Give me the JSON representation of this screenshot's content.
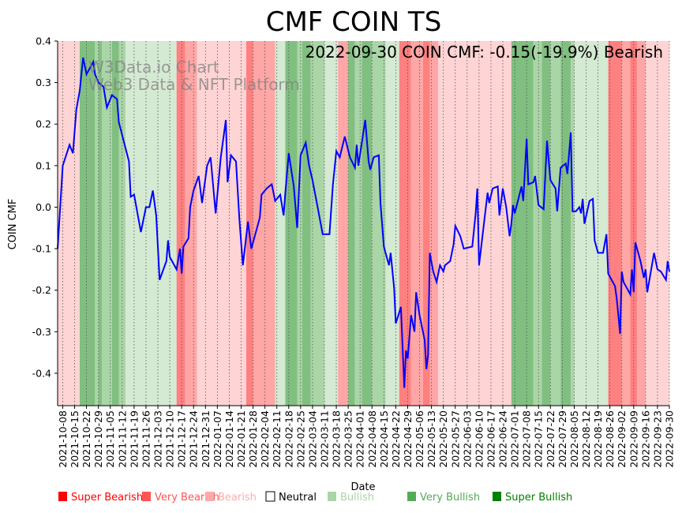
{
  "chart_data": {
    "type": "line",
    "title": "CMF COIN TS",
    "annotation": "2022-09-30 COIN CMF: -0.15(-19.9%) Bearish",
    "watermark": [
      "W3Data.io Chart",
      "Web3 Data & NFT Platform"
    ],
    "xlabel": "Date",
    "ylabel": "COIN CMF",
    "ylim": [
      -0.478,
      0.4
    ],
    "x_origin": "2021-10-08",
    "xlim_days": [
      -3,
      357
    ],
    "yticks": [
      "-0.4",
      "-0.3",
      "-0.2",
      "-0.1",
      "0.0",
      "0.1",
      "0.2",
      "0.3",
      "0.4"
    ],
    "ytick_values": [
      -0.4,
      -0.3,
      -0.2,
      -0.1,
      0.0,
      0.1,
      0.2,
      0.3,
      0.4
    ],
    "xticks": [
      "2021-10-08",
      "2021-10-15",
      "2021-10-22",
      "2021-10-29",
      "2021-11-05",
      "2021-11-12",
      "2021-11-19",
      "2021-11-26",
      "2021-12-03",
      "2021-12-10",
      "2021-12-17",
      "2021-12-24",
      "2021-12-31",
      "2022-01-07",
      "2022-01-14",
      "2022-01-21",
      "2022-01-28",
      "2022-02-04",
      "2022-02-11",
      "2022-02-18",
      "2022-02-25",
      "2022-03-04",
      "2022-03-11",
      "2022-03-18",
      "2022-03-25",
      "2022-04-01",
      "2022-04-08",
      "2022-04-15",
      "2022-04-22",
      "2022-04-29",
      "2022-05-06",
      "2022-05-13",
      "2022-05-20",
      "2022-05-27",
      "2022-06-03",
      "2022-06-10",
      "2022-06-17",
      "2022-06-24",
      "2022-07-01",
      "2022-07-08",
      "2022-07-15",
      "2022-07-22",
      "2022-07-29",
      "2022-08-05",
      "2022-08-12",
      "2022-08-19",
      "2022-08-26",
      "2022-09-02",
      "2022-09-09",
      "2022-09-16",
      "2022-09-23",
      "2022-09-30"
    ],
    "series": [
      {
        "name": "COIN CMF",
        "color": "#0000ff",
        "points_day_value": [
          [
            -3,
            -0.1
          ],
          [
            0,
            0.1
          ],
          [
            4,
            0.15
          ],
          [
            6,
            0.13
          ],
          [
            8,
            0.235
          ],
          [
            10,
            0.28
          ],
          [
            12,
            0.36
          ],
          [
            14,
            0.32
          ],
          [
            18,
            0.35
          ],
          [
            19,
            0.32
          ],
          [
            21,
            0.3
          ],
          [
            24,
            0.29
          ],
          [
            26,
            0.24
          ],
          [
            29,
            0.27
          ],
          [
            32,
            0.26
          ],
          [
            33,
            0.205
          ],
          [
            39,
            0.11
          ],
          [
            40,
            0.025
          ],
          [
            42,
            0.03
          ],
          [
            46,
            -0.06
          ],
          [
            49,
            0
          ],
          [
            51,
            0
          ],
          [
            53,
            0.04
          ],
          [
            55,
            -0.02
          ],
          [
            57,
            -0.175
          ],
          [
            61,
            -0.13
          ],
          [
            62,
            -0.08
          ],
          [
            63,
            -0.12
          ],
          [
            67,
            -0.15
          ],
          [
            69,
            -0.1
          ],
          [
            70,
            -0.16
          ],
          [
            71,
            -0.095
          ],
          [
            74,
            -0.075
          ],
          [
            75,
            0
          ],
          [
            77,
            0.04
          ],
          [
            80,
            0.075
          ],
          [
            82,
            0.01
          ],
          [
            85,
            0.1
          ],
          [
            87,
            0.12
          ],
          [
            90,
            -0.015
          ],
          [
            93,
            0.12
          ],
          [
            96,
            0.21
          ],
          [
            97,
            0.06
          ],
          [
            99,
            0.125
          ],
          [
            102,
            0.11
          ],
          [
            104,
            -0.03
          ],
          [
            106,
            -0.14
          ],
          [
            109,
            -0.035
          ],
          [
            111,
            -0.1
          ],
          [
            116,
            -0.025
          ],
          [
            117,
            0.03
          ],
          [
            120,
            0.045
          ],
          [
            123,
            0.055
          ],
          [
            125,
            0.015
          ],
          [
            128,
            0.03
          ],
          [
            130,
            -0.02
          ],
          [
            131,
            0.035
          ],
          [
            133,
            0.13
          ],
          [
            136,
            0.05
          ],
          [
            138,
            -0.05
          ],
          [
            140,
            0.125
          ],
          [
            143,
            0.155
          ],
          [
            145,
            0.1
          ],
          [
            147,
            0.065
          ],
          [
            150,
            0
          ],
          [
            153,
            -0.065
          ],
          [
            157,
            -0.065
          ],
          [
            159,
            0.055
          ],
          [
            161,
            0.135
          ],
          [
            163,
            0.12
          ],
          [
            166,
            0.17
          ],
          [
            169,
            0.12
          ],
          [
            172,
            0.095
          ],
          [
            173,
            0.15
          ],
          [
            174,
            0.1
          ],
          [
            178,
            0.21
          ],
          [
            180,
            0.11
          ],
          [
            181,
            0.09
          ],
          [
            183,
            0.12
          ],
          [
            186,
            0.125
          ],
          [
            187,
            0.01
          ],
          [
            189,
            -0.095
          ],
          [
            192,
            -0.14
          ],
          [
            193,
            -0.11
          ],
          [
            195,
            -0.195
          ],
          [
            196,
            -0.28
          ],
          [
            199,
            -0.24
          ],
          [
            201,
            -0.435
          ],
          [
            202,
            -0.345
          ],
          [
            203,
            -0.365
          ],
          [
            205,
            -0.26
          ],
          [
            207,
            -0.3
          ],
          [
            208,
            -0.205
          ],
          [
            210,
            -0.26
          ],
          [
            213,
            -0.32
          ],
          [
            214,
            -0.39
          ],
          [
            215,
            -0.355
          ],
          [
            216,
            -0.11
          ],
          [
            218,
            -0.155
          ],
          [
            220,
            -0.18
          ],
          [
            222,
            -0.14
          ],
          [
            224,
            -0.155
          ],
          [
            225,
            -0.14
          ],
          [
            228,
            -0.13
          ],
          [
            230,
            -0.09
          ],
          [
            231,
            -0.045
          ],
          [
            234,
            -0.07
          ],
          [
            236,
            -0.1
          ],
          [
            241,
            -0.095
          ],
          [
            243,
            -0.015
          ],
          [
            244,
            0.045
          ],
          [
            245,
            -0.14
          ],
          [
            250,
            0.035
          ],
          [
            251,
            0.01
          ],
          [
            253,
            0.045
          ],
          [
            256,
            0.05
          ],
          [
            257,
            -0.02
          ],
          [
            259,
            0.045
          ],
          [
            261,
            0
          ],
          [
            263,
            -0.07
          ],
          [
            264,
            -0.04
          ],
          [
            265,
            0.005
          ],
          [
            266,
            -0.015
          ],
          [
            270,
            0.05
          ],
          [
            271,
            0.015
          ],
          [
            273,
            0.165
          ],
          [
            274,
            0.055
          ],
          [
            277,
            0.06
          ],
          [
            278,
            0.075
          ],
          [
            280,
            0.005
          ],
          [
            283,
            -0.005
          ],
          [
            285,
            0.16
          ],
          [
            287,
            0.065
          ],
          [
            290,
            0.045
          ],
          [
            291,
            -0.01
          ],
          [
            293,
            0.095
          ],
          [
            296,
            0.105
          ],
          [
            297,
            0.08
          ],
          [
            299,
            0.18
          ],
          [
            300,
            -0.01
          ],
          [
            302,
            -0.01
          ],
          [
            304,
            0
          ],
          [
            305,
            -0.015
          ],
          [
            306,
            0.02
          ],
          [
            307,
            -0.04
          ],
          [
            310,
            0.015
          ],
          [
            312,
            0.02
          ],
          [
            313,
            -0.08
          ],
          [
            315,
            -0.11
          ],
          [
            318,
            -0.11
          ],
          [
            320,
            -0.065
          ],
          [
            321,
            -0.16
          ],
          [
            325,
            -0.19
          ],
          [
            326,
            -0.22
          ],
          [
            328,
            -0.305
          ],
          [
            329,
            -0.155
          ],
          [
            330,
            -0.18
          ],
          [
            334,
            -0.21
          ],
          [
            335,
            -0.15
          ],
          [
            336,
            -0.205
          ],
          [
            337,
            -0.085
          ],
          [
            340,
            -0.13
          ],
          [
            342,
            -0.17
          ],
          [
            343,
            -0.15
          ],
          [
            344,
            -0.205
          ],
          [
            348,
            -0.11
          ],
          [
            350,
            -0.15
          ],
          [
            352,
            -0.155
          ],
          [
            355,
            -0.175
          ],
          [
            356,
            -0.13
          ],
          [
            357,
            -0.155
          ]
        ]
      }
    ],
    "bands_day_level": [
      [
        -3,
        10,
        "bearish"
      ],
      [
        10,
        19,
        "super_bullish"
      ],
      [
        19,
        21,
        "very_bullish"
      ],
      [
        21,
        23,
        "super_bullish"
      ],
      [
        23,
        29,
        "very_bullish"
      ],
      [
        29,
        33,
        "super_bullish"
      ],
      [
        33,
        37,
        "very_bullish"
      ],
      [
        37,
        67,
        "bullish"
      ],
      [
        67,
        72,
        "super_bearish"
      ],
      [
        72,
        79,
        "very_bearish"
      ],
      [
        79,
        108,
        "bearish"
      ],
      [
        108,
        112,
        "super_bearish"
      ],
      [
        112,
        125,
        "very_bearish"
      ],
      [
        125,
        131,
        "bullish"
      ],
      [
        131,
        138,
        "super_bullish"
      ],
      [
        138,
        141,
        "very_bullish"
      ],
      [
        141,
        146,
        "super_bullish"
      ],
      [
        146,
        154,
        "very_bullish"
      ],
      [
        154,
        162,
        "bullish"
      ],
      [
        162,
        168,
        "very_bearish"
      ],
      [
        168,
        172,
        "super_bullish"
      ],
      [
        172,
        176,
        "very_bullish"
      ],
      [
        176,
        182,
        "super_bullish"
      ],
      [
        182,
        190,
        "very_bullish"
      ],
      [
        190,
        198,
        "bullish"
      ],
      [
        198,
        205,
        "super_bearish"
      ],
      [
        205,
        212,
        "very_bearish"
      ],
      [
        212,
        216,
        "super_bearish"
      ],
      [
        216,
        221,
        "very_bearish"
      ],
      [
        221,
        264,
        "bearish"
      ],
      [
        264,
        277,
        "super_bullish"
      ],
      [
        277,
        282,
        "very_bullish"
      ],
      [
        282,
        287,
        "super_bullish"
      ],
      [
        287,
        293,
        "very_bullish"
      ],
      [
        293,
        299,
        "super_bullish"
      ],
      [
        299,
        301,
        "very_bullish"
      ],
      [
        301,
        321,
        "bullish"
      ],
      [
        321,
        329,
        "super_bearish"
      ],
      [
        329,
        334,
        "very_bearish"
      ],
      [
        334,
        338,
        "super_bearish"
      ],
      [
        338,
        343,
        "very_bearish"
      ],
      [
        343,
        357,
        "bearish"
      ]
    ],
    "band_colors": {
      "super_bearish": "#ff8080",
      "very_bearish": "#ffa6a6",
      "bearish": "#ffd4d4",
      "bullish": "#d5ead3",
      "very_bullish": "#aad5a6",
      "super_bullish": "#80bf80"
    },
    "legend": [
      {
        "label": "Super Bearish",
        "color": "#ff0000",
        "text_color": "#ff0000"
      },
      {
        "label": "Very Bearish",
        "color": "#ff5555",
        "text_color": "#ff5555"
      },
      {
        "label": "Bearish",
        "color": "#ffaaaa",
        "text_color": "#ffaaaa"
      },
      {
        "label": "Neutral",
        "color": "none",
        "text_color": "#000000"
      },
      {
        "label": "Bullish",
        "color": "#aad5a6",
        "text_color": "#aad5a6"
      },
      {
        "label": "Very Bullish",
        "color": "#55aa55",
        "text_color": "#55aa55"
      },
      {
        "label": "Super Bullish",
        "color": "#008000",
        "text_color": "#008000"
      }
    ],
    "legend_placement": "bottom"
  }
}
